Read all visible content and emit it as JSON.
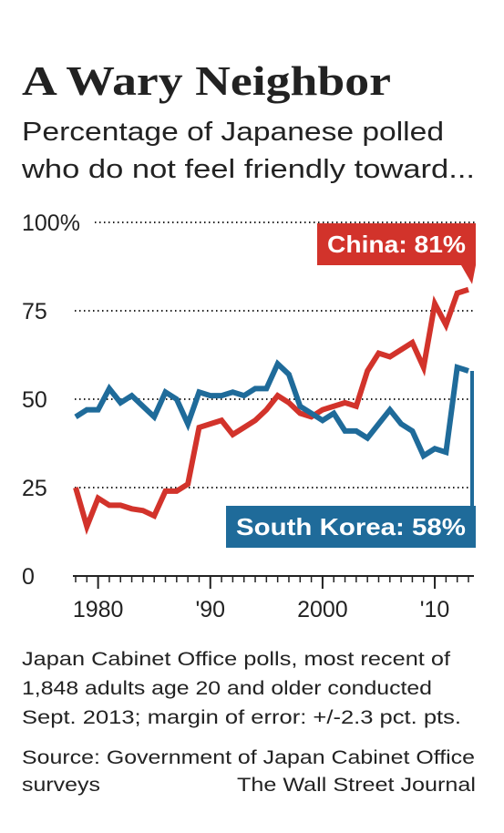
{
  "chart_data": {
    "type": "line",
    "title": "A Wary Neighbor",
    "subtitle": [
      "Percentage of Japanese polled",
      "who do not feel friendly toward..."
    ],
    "x": [
      1978,
      1979,
      1980,
      1981,
      1982,
      1983,
      1984,
      1985,
      1986,
      1987,
      1988,
      1989,
      1990,
      1991,
      1992,
      1993,
      1994,
      1995,
      1996,
      1997,
      1998,
      1999,
      2000,
      2001,
      2002,
      2003,
      2004,
      2005,
      2006,
      2007,
      2008,
      2009,
      2010,
      2011,
      2012,
      2013
    ],
    "series": [
      {
        "name": "China",
        "color": "#d2332b",
        "values": [
          25,
          14,
          22,
          20,
          20,
          19,
          18.5,
          17,
          24,
          24,
          26,
          42,
          43,
          44,
          40,
          42,
          44,
          47,
          51,
          49,
          46,
          45,
          47,
          48,
          49,
          48,
          58,
          63,
          62,
          64,
          66,
          59,
          77,
          71,
          80,
          81
        ]
      },
      {
        "name": "South Korea",
        "color": "#1f6b9a",
        "values": [
          45,
          47,
          47,
          53,
          49,
          51,
          48,
          45,
          52,
          50,
          43,
          52,
          51,
          51,
          52,
          51,
          53,
          53,
          60,
          57,
          48,
          46,
          44,
          46,
          41,
          41,
          39,
          43,
          47,
          43,
          41,
          34,
          36,
          35,
          59,
          58
        ]
      }
    ],
    "annotations": [
      {
        "text": "China: 81%",
        "series": 0
      },
      {
        "text": "South Korea: 58%",
        "series": 1
      }
    ],
    "xlim": [
      1978,
      2013
    ],
    "xticks": [
      1980,
      {
        "value": 1990,
        "label": "'90"
      },
      2000,
      {
        "value": 2010,
        "label": "'10"
      }
    ],
    "ylim": [
      0,
      100
    ],
    "yticks": [
      0,
      25,
      50,
      75,
      {
        "value": 100,
        "label": "100%"
      }
    ],
    "grid": true,
    "note": [
      "Japan Cabinet Office polls, most recent of",
      "1,848 adults age 20 and older conducted",
      "Sept. 2013; margin of error: +/-2.3 pct. pts."
    ],
    "source": [
      "Source: Government of Japan Cabinet Office",
      "surveys"
    ],
    "credit": "The Wall Street Journal"
  }
}
